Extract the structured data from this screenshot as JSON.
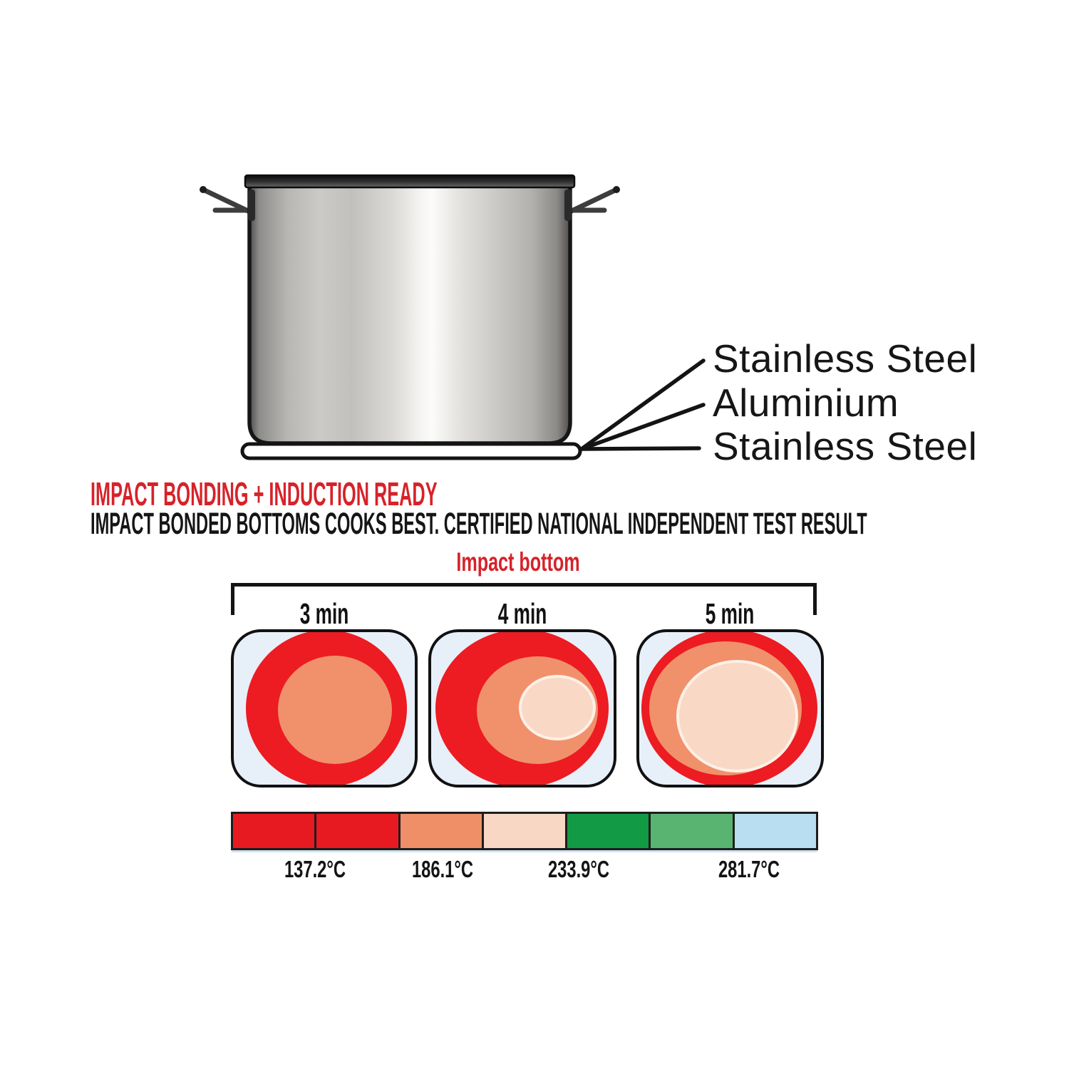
{
  "pot": {
    "layers": [
      "Stainless Steel",
      "Aluminium",
      "Stainless Steel"
    ]
  },
  "headline": {
    "title": "IMPACT BONDING + INDUCTION READY",
    "subtitle": "IMPACT BONDED BOTTOMS COOKS BEST. CERTIFIED NATIONAL INDEPENDENT TEST RESULT"
  },
  "heat_test": {
    "group_label": "Impact bottom",
    "panels": [
      {
        "time": "3 min"
      },
      {
        "time": "4 min"
      },
      {
        "time": "5 min"
      }
    ],
    "scale": {
      "cell_colors": [
        "#e81a21",
        "#e81a21",
        "#ef8f68",
        "#f8d8c5",
        "#129a44",
        "#5ab471",
        "#b9def2"
      ],
      "temps": [
        "137.2°C",
        "186.1°C",
        "233.9°C",
        "281.7°C"
      ]
    }
  },
  "colors": {
    "accent_red": "#d7222a",
    "heat_red": "#ed1b22",
    "heat_salmon": "#f0916b",
    "heat_pale": "#f9d8c5",
    "panel_bg": "#e7f0f8"
  }
}
